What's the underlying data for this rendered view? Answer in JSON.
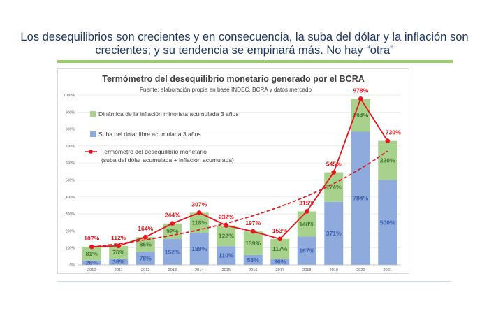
{
  "slide": {
    "title_line1": "Los desequilibrios son crecientes y en consecuencia, la suba del dólar y la inflación son",
    "title_line2": "crecientes; y su tendencia se empinará más. No hay “otra”"
  },
  "colors": {
    "inflation": "#a9d18e",
    "dollar": "#8faadc",
    "thermometer": "#e8141b",
    "title": "#1f3864",
    "accent_rule": "#9ccc6e"
  },
  "chart_data": {
    "type": "bar",
    "title": "Termómetro del desequilibrio monetario generado por el BCRA",
    "subtitle": "Fuente: elaboración propia en base INDEC, BCRA y datos mercado",
    "categories": [
      "2010",
      "2011",
      "2012",
      "2013",
      "2014",
      "2015",
      "2016",
      "2017",
      "2018",
      "2019",
      "2020",
      "2021"
    ],
    "ylim": [
      0,
      1000
    ],
    "yticks": [
      "0%",
      "100%",
      "200%",
      "300%",
      "400%",
      "500%",
      "600%",
      "700%",
      "800%",
      "900%",
      "1000%"
    ],
    "series": [
      {
        "name": "Suba del dólar libre acumulada 3 años",
        "values": [
          26,
          36,
          78,
          152,
          189,
          110,
          58,
          36,
          167,
          371,
          784,
          500
        ],
        "labels": [
          "26%",
          "36%",
          "78%",
          "152%",
          "189%",
          "110%",
          "58%",
          "36%",
          "167%",
          "371%",
          "784%",
          "500%"
        ]
      },
      {
        "name": "Dinámica de la inflación minorista acumulada 3 años",
        "values": [
          81,
          76,
          86,
          92,
          118,
          122,
          139,
          117,
          148,
          174,
          194,
          230
        ],
        "labels": [
          "81%",
          "76%",
          "86%",
          "92%",
          "118%",
          "122%",
          "139%",
          "117%",
          "148%",
          "174%",
          "194%",
          "230%"
        ]
      },
      {
        "name": "Termómetro del desequilibrio monetario",
        "name2": "(suba del dólar acumulada + inflación acumulada)",
        "values": [
          107,
          112,
          164,
          244,
          307,
          232,
          197,
          153,
          315,
          545,
          978,
          730
        ],
        "labels": [
          "107%",
          "112%",
          "164%",
          "244%",
          "307%",
          "232%",
          "197%",
          "153%",
          "315%",
          "545%",
          "978%",
          "730%"
        ]
      }
    ]
  }
}
